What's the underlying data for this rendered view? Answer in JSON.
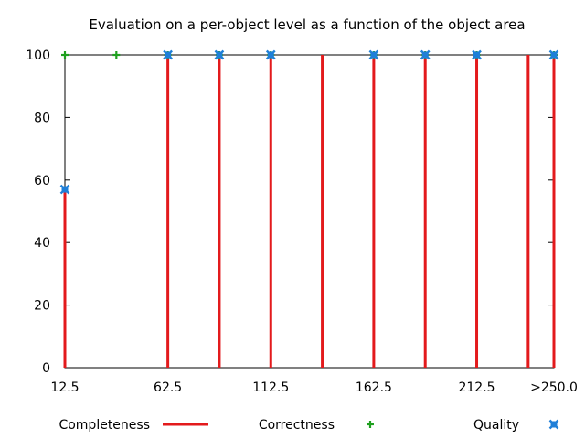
{
  "chart_data": {
    "type": "bar",
    "title": "Evaluation on a per-object level as a function of the object area",
    "xlabel": "",
    "ylabel": "",
    "xlim": [
      12.5,
      250
    ],
    "ylim": [
      0,
      100
    ],
    "grid": false,
    "legend_position": "bottom",
    "y_ticks": [
      "0",
      "20",
      "40",
      "60",
      "80",
      "100"
    ],
    "y_tick_values": [
      0,
      20,
      40,
      60,
      80,
      100
    ],
    "x_ticks": [
      "12.5",
      "62.5",
      "112.5",
      "162.5",
      "212.5",
      ">250.0"
    ],
    "x_tick_values": [
      12.5,
      62.5,
      112.5,
      162.5,
      212.5,
      250
    ],
    "series": [
      {
        "name": "Completeness",
        "mark": "impulse",
        "color": "#e31a1c",
        "x": [
          12.5,
          62.5,
          87.5,
          112.5,
          137.5,
          162.5,
          187.5,
          212.5,
          237.5,
          250
        ],
        "values": [
          57,
          100,
          100,
          100,
          100,
          100,
          100,
          100,
          100,
          100
        ]
      },
      {
        "name": "Correctness",
        "mark": "plus",
        "color": "#1fa01f",
        "x": [
          12.5,
          37.5,
          62.5,
          87.5,
          112.5,
          162.5,
          187.5,
          212.5,
          250
        ],
        "values": [
          100,
          100,
          100,
          100,
          100,
          100,
          100,
          100,
          100
        ]
      },
      {
        "name": "Quality",
        "mark": "cross",
        "color": "#1f7fd8",
        "x": [
          12.5,
          62.5,
          87.5,
          112.5,
          162.5,
          187.5,
          212.5,
          250
        ],
        "values": [
          57,
          100,
          100,
          100,
          100,
          100,
          100,
          100
        ]
      }
    ]
  }
}
